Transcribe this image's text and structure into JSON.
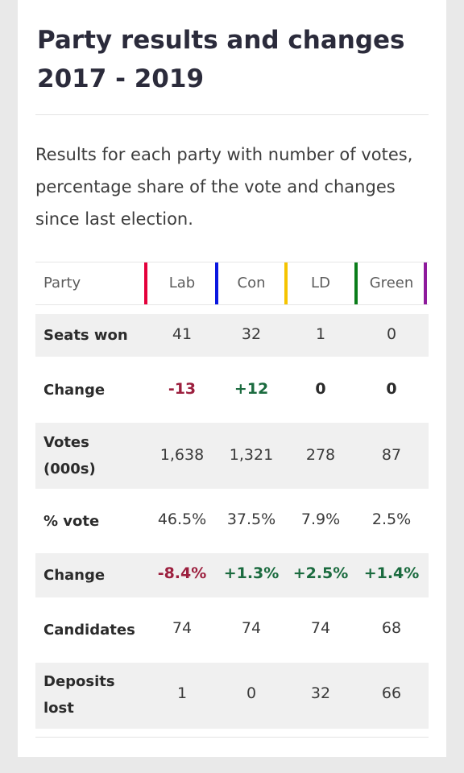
{
  "title_line1": "Party results and changes",
  "title_line2": "2017 - 2019",
  "description": "Results for each party with number of votes, percentage share of the vote and changes since last election.",
  "table": {
    "party_header": "Party",
    "parties": [
      {
        "name": "Lab",
        "color": "#e4003b"
      },
      {
        "name": "Con",
        "color": "#0a17e0"
      },
      {
        "name": "LD",
        "color": "#f5c400"
      },
      {
        "name": "Green",
        "color": "#0a7d1a"
      }
    ],
    "extra_bar_color": "#8e1a9c",
    "rows": [
      {
        "label": "Seats won",
        "values": [
          "41",
          "32",
          "1",
          "0"
        ]
      },
      {
        "label": "Change",
        "values": [
          "-13",
          "+12",
          "0",
          "0"
        ]
      },
      {
        "label_line1": "Votes",
        "label_line2": "(000s)",
        "values": [
          "1,638",
          "1,321",
          "278",
          "87"
        ]
      },
      {
        "label": "% vote",
        "values": [
          "46.5%",
          "37.5%",
          "7.9%",
          "2.5%"
        ]
      },
      {
        "label": "Change",
        "values": [
          "-8.4%",
          "+1.3%",
          "+2.5%",
          "+1.4%"
        ]
      },
      {
        "label": "Candidates",
        "values": [
          "74",
          "74",
          "74",
          "68"
        ]
      },
      {
        "label_line1": "Deposits",
        "label_line2": "lost",
        "values": [
          "1",
          "0",
          "32",
          "66"
        ]
      }
    ]
  }
}
